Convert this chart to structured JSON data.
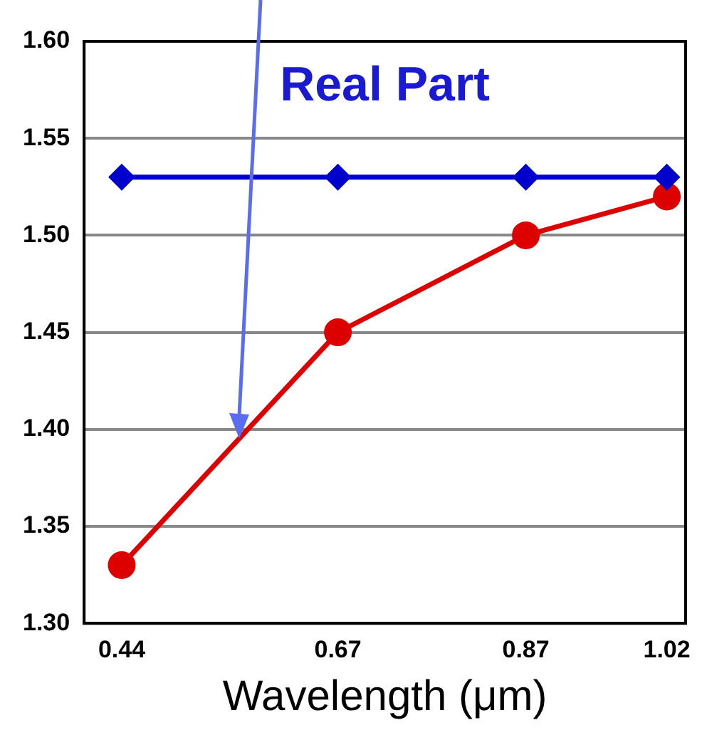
{
  "chart_data": {
    "type": "line",
    "xlabel": "Wavelength (μm)",
    "annotations": [
      "Real Part"
    ],
    "x": [
      0.44,
      0.67,
      0.87,
      1.02
    ],
    "series": [
      {
        "color": "#0000cc",
        "marker": "diamond",
        "values": [
          1.53,
          1.53,
          1.53,
          1.53
        ]
      },
      {
        "color": "#dd0000",
        "marker": "circle",
        "values": [
          1.33,
          1.45,
          1.5,
          1.52
        ]
      }
    ],
    "xlim": [
      0.4,
      1.04
    ],
    "xticks": [
      0.44,
      0.67,
      0.87,
      1.02
    ],
    "ylim": [
      1.3,
      1.6
    ],
    "yticks": [
      {
        "value": 1.3,
        "label": "1.30"
      },
      {
        "value": 1.35,
        "label": "1.35"
      },
      {
        "value": 1.4,
        "label": "1.40"
      },
      {
        "value": 1.45,
        "label": "1.45"
      },
      {
        "value": 1.5,
        "label": "1.50"
      },
      {
        "value": 1.55,
        "label": "1.55"
      },
      {
        "value": 1.6,
        "label": "1.60"
      }
    ],
    "grid": "y",
    "legend": false,
    "line_style": "solid"
  }
}
